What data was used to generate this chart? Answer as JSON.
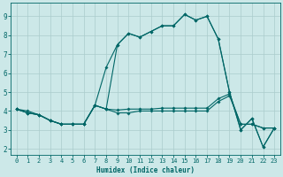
{
  "xlabel": "Humidex (Indice chaleur)",
  "ylabel": "",
  "bg_color": "#cce8e8",
  "grid_color": "#aacccc",
  "line_color": "#006666",
  "xlim": [
    -0.5,
    23.5
  ],
  "ylim": [
    1.7,
    9.7
  ],
  "xticks": [
    0,
    1,
    2,
    3,
    4,
    5,
    6,
    7,
    8,
    9,
    10,
    11,
    12,
    13,
    14,
    15,
    16,
    17,
    18,
    19,
    20,
    21,
    22,
    23
  ],
  "yticks": [
    2,
    3,
    4,
    5,
    6,
    7,
    8,
    9
  ],
  "lines": [
    [
      4.1,
      4.0,
      3.8,
      3.5,
      3.3,
      3.3,
      3.3,
      4.3,
      4.1,
      7.5,
      8.1,
      7.9,
      8.2,
      8.5,
      8.5,
      9.1,
      8.8,
      9.0,
      7.8,
      5.0,
      3.0,
      3.6,
      2.1,
      3.1
    ],
    [
      4.1,
      3.9,
      3.8,
      3.5,
      3.3,
      3.3,
      3.3,
      4.3,
      4.1,
      3.9,
      3.9,
      4.0,
      4.0,
      4.0,
      4.0,
      4.0,
      4.0,
      4.0,
      4.5,
      4.8,
      3.3,
      3.3,
      3.1,
      3.1
    ],
    [
      4.1,
      3.9,
      3.8,
      3.5,
      3.3,
      3.3,
      3.3,
      4.3,
      4.1,
      4.05,
      4.1,
      4.1,
      4.1,
      4.15,
      4.15,
      4.15,
      4.15,
      4.15,
      4.65,
      4.9,
      3.3,
      3.3,
      3.1,
      3.1
    ],
    [
      4.1,
      3.9,
      3.8,
      3.5,
      3.3,
      3.3,
      3.3,
      4.3,
      6.3,
      7.5,
      8.1,
      7.9,
      8.2,
      8.5,
      8.5,
      9.1,
      8.8,
      9.0,
      7.8,
      5.0,
      3.0,
      3.6,
      2.1,
      3.1
    ]
  ]
}
